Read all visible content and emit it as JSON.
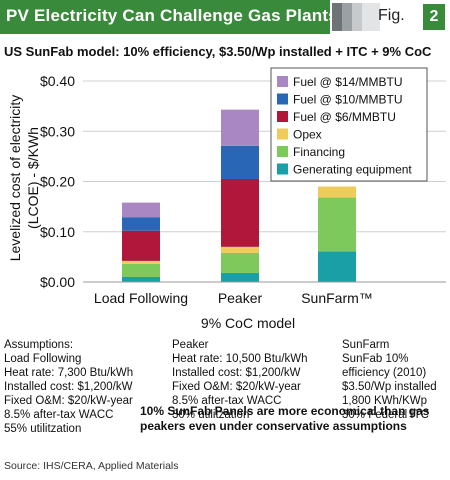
{
  "header": {
    "title": "PV Electricity Can Challenge Gas Plants",
    "fig_label": "Fig.",
    "fig_number": "2",
    "accent_color": "#3a8a3c",
    "squares": [
      "#6e7376",
      "#9aa0a3",
      "#c6cacc",
      "#e2e4e5"
    ]
  },
  "subtitle": "US SunFab model: 10% efficiency, $3.50/Wp installed + ITC + 9% CoC",
  "chart_data": {
    "type": "bar",
    "stacked": true,
    "categories": [
      "Load Following",
      "Peaker",
      "SunFarm™"
    ],
    "ylabel_line1": "Levelized cost of electricity",
    "ylabel_line2": "(LCOE) - $/KWh",
    "xlabel": "9% CoC model",
    "ylim": [
      0,
      0.4
    ],
    "yticks": [
      {
        "value": 0.0,
        "label": "$0.00"
      },
      {
        "value": 0.1,
        "label": "$0.10"
      },
      {
        "value": 0.2,
        "label": "$0.20"
      },
      {
        "value": 0.3,
        "label": "$0.30"
      },
      {
        "value": 0.4,
        "label": "$0.40"
      }
    ],
    "grid": "horizontal",
    "legend_position": "top-right",
    "series": [
      {
        "name": "Generating equipment",
        "color": "#1a9fa6",
        "values": [
          0.01,
          0.018,
          0.061
        ]
      },
      {
        "name": "Financing",
        "color": "#7ec95b",
        "values": [
          0.026,
          0.04,
          0.107
        ]
      },
      {
        "name": "Opex",
        "color": "#eecb5a",
        "values": [
          0.006,
          0.012,
          0.022
        ]
      },
      {
        "name": "Fuel @ $6/MMBTU",
        "color": "#b0173a",
        "values": [
          0.06,
          0.135,
          0
        ]
      },
      {
        "name": "Fuel @ $10/MMBTU",
        "color": "#2a66b6",
        "values": [
          0.027,
          0.066,
          0
        ]
      },
      {
        "name": "Fuel @ $14/MMBTU",
        "color": "#a887c2",
        "values": [
          0.029,
          0.072,
          0
        ]
      }
    ]
  },
  "notes": [
    {
      "lines": [
        "Assumptions:",
        "Load Following",
        "Heat rate: 7,300 Btu/kWh",
        "Installed cost: $1,200/kW",
        "Fixed O&M: $20/kW-year",
        "8.5% after-tax WACC",
        "55% utilitzation"
      ]
    },
    {
      "lines": [
        "Peaker",
        "Heat rate: 10,500 Btu/kWh",
        "Installed cost: $1,200/kW",
        "Fixed O&M: $20/kW-year",
        "8.5% after-tax WACC",
        "30% utilitzation"
      ]
    },
    {
      "lines": [
        "SunFarm",
        "SunFab 10%",
        "efficiency (2010)",
        "$3.50/Wp installed",
        "1,800 KWh/KWp",
        "30% Federal ITC"
      ]
    }
  ],
  "conclusion": [
    "10% SunFab Panels are more economical than gas",
    "peakers even under conservative assumptions"
  ],
  "source": "Source: IHS/CERA, Applied Materials"
}
